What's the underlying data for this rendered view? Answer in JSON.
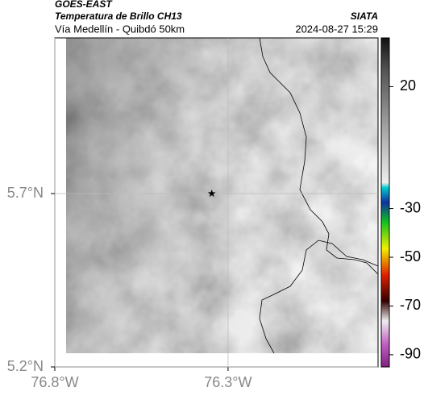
{
  "chart_data": {
    "type": "map",
    "title": "GOES-EAST",
    "subtitle": "Temperatura de Brillo CH13",
    "source": "SIATA",
    "caption": "Vía Medellín - Quibdó 50km",
    "timestamp": "2024-08-27 15:29",
    "xlim": [
      -76.8,
      -75.867
    ],
    "ylim": [
      5.2,
      6.149
    ],
    "xticks": [
      {
        "value": -76.8,
        "label": "76.8°W"
      },
      {
        "value": -76.3,
        "label": "76.3°W"
      }
    ],
    "yticks": [
      {
        "value": 5.2,
        "label": "5.2°N"
      },
      {
        "value": 5.7,
        "label": "5.7°N"
      }
    ],
    "grid": true,
    "marker": {
      "lon": -76.347,
      "lat": 5.7
    },
    "colorbar": {
      "lim": [
        40,
        -95
      ],
      "ticks": [
        20,
        -30,
        -50,
        -70,
        -90
      ]
    }
  }
}
